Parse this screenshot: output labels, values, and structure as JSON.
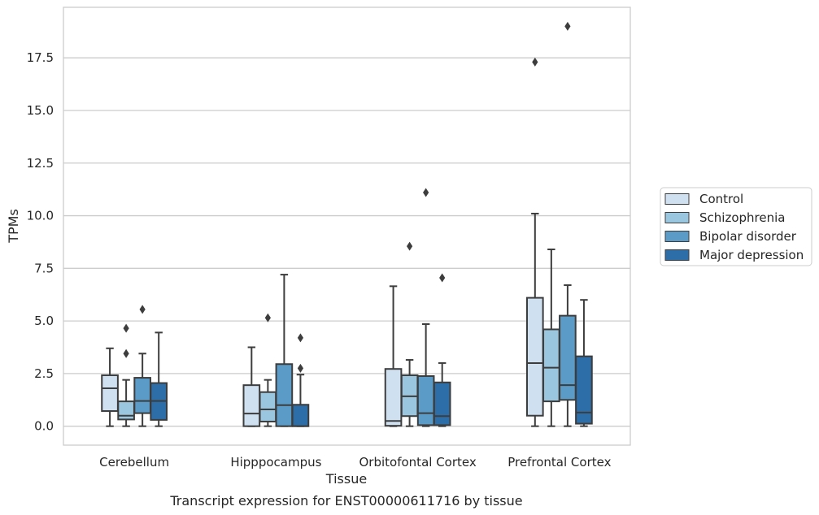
{
  "chart_data": {
    "type": "boxplot",
    "title": "",
    "caption": "Transcript expression for ENST00000611716 by tissue",
    "xlabel": "Tissue",
    "ylabel": "TPMs",
    "ylim": [
      -0.9,
      19.9
    ],
    "yticks": [
      0.0,
      2.5,
      5.0,
      7.5,
      10.0,
      12.5,
      15.0,
      17.5
    ],
    "ytick_labels": [
      "0.0",
      "2.5",
      "5.0",
      "7.5",
      "10.0",
      "12.5",
      "15.0",
      "17.5"
    ],
    "grid": "horizontal",
    "legend_position": "right",
    "categories": [
      "Cerebellum",
      "Hipppocampus",
      "Orbitofontal Cortex",
      "Prefrontal Cortex"
    ],
    "series": [
      {
        "name": "Control",
        "color": "#cfe0f1",
        "boxes": [
          {
            "whislo": 0.0,
            "q1": 0.72,
            "med": 1.8,
            "q3": 2.42,
            "whishi": 3.7,
            "fliers": []
          },
          {
            "whislo": 0.0,
            "q1": 0.0,
            "med": 0.6,
            "q3": 1.95,
            "whishi": 3.75,
            "fliers": []
          },
          {
            "whislo": 0.0,
            "q1": 0.02,
            "med": 0.25,
            "q3": 2.72,
            "whishi": 6.65,
            "fliers": []
          },
          {
            "whislo": 0.0,
            "q1": 0.5,
            "med": 3.0,
            "q3": 6.1,
            "whishi": 10.1,
            "fliers": [
              17.3
            ]
          }
        ]
      },
      {
        "name": "Schizophrenia",
        "color": "#9bc6df",
        "boxes": [
          {
            "whislo": 0.0,
            "q1": 0.32,
            "med": 0.5,
            "q3": 1.18,
            "whishi": 2.2,
            "fliers": [
              3.45,
              4.65
            ]
          },
          {
            "whislo": 0.0,
            "q1": 0.22,
            "med": 0.8,
            "q3": 1.62,
            "whishi": 2.2,
            "fliers": [
              5.15
            ]
          },
          {
            "whislo": 0.0,
            "q1": 0.48,
            "med": 1.42,
            "q3": 2.42,
            "whishi": 3.15,
            "fliers": [
              8.55
            ]
          },
          {
            "whislo": 0.0,
            "q1": 1.18,
            "med": 2.78,
            "q3": 4.6,
            "whishi": 8.4,
            "fliers": []
          }
        ]
      },
      {
        "name": "Bipolar disorder",
        "color": "#5a9bc8",
        "boxes": [
          {
            "whislo": 0.0,
            "q1": 0.62,
            "med": 1.2,
            "q3": 2.3,
            "whishi": 3.45,
            "fliers": [
              5.55
            ]
          },
          {
            "whislo": 0.0,
            "q1": 0.0,
            "med": 1.0,
            "q3": 2.95,
            "whishi": 7.2,
            "fliers": []
          },
          {
            "whislo": 0.0,
            "q1": 0.05,
            "med": 0.62,
            "q3": 2.38,
            "whishi": 4.85,
            "fliers": [
              11.1
            ]
          },
          {
            "whislo": 0.0,
            "q1": 1.25,
            "med": 1.95,
            "q3": 5.25,
            "whishi": 6.7,
            "fliers": [
              19.0
            ]
          }
        ]
      },
      {
        "name": "Major depression",
        "color": "#2d6ea8",
        "boxes": [
          {
            "whislo": 0.0,
            "q1": 0.3,
            "med": 1.2,
            "q3": 2.05,
            "whishi": 4.45,
            "fliers": []
          },
          {
            "whislo": 0.0,
            "q1": 0.0,
            "med": 0.0,
            "q3": 1.02,
            "whishi": 2.45,
            "fliers": [
              2.75,
              4.2
            ]
          },
          {
            "whislo": 0.0,
            "q1": 0.05,
            "med": 0.48,
            "q3": 2.08,
            "whishi": 3.0,
            "fliers": [
              7.05
            ]
          },
          {
            "whislo": 0.0,
            "q1": 0.12,
            "med": 0.65,
            "q3": 3.32,
            "whishi": 6.0,
            "fliers": []
          }
        ]
      }
    ]
  }
}
